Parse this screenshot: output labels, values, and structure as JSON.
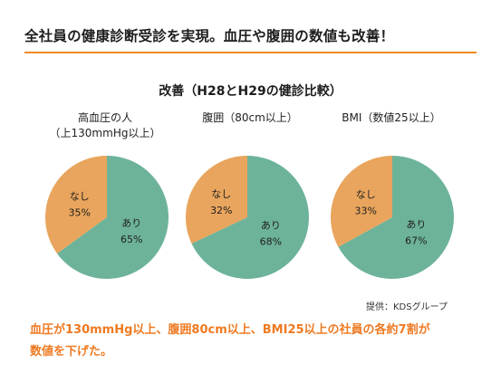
{
  "headline": "全社員の健康診断受診を実現。血圧や腹囲の数値も改善！",
  "accent_color": "#f08a28",
  "colors": {
    "ari": "#6db39a",
    "nashi": "#e9a55d"
  },
  "chart_data": {
    "type": "pie",
    "title": "改善（H28とH29の健診比較）",
    "charts": [
      {
        "label_lines": [
          "高血圧の人",
          "（上130mmHg以上）"
        ],
        "slices": [
          {
            "name": "あり",
            "value_label": "65%",
            "value": 65
          },
          {
            "name": "なし",
            "value_label": "35%",
            "value": 35
          }
        ]
      },
      {
        "label_lines": [
          "腹囲（80cm以上）"
        ],
        "slices": [
          {
            "name": "あり",
            "value_label": "68%",
            "value": 68
          },
          {
            "name": "なし",
            "value_label": "32%",
            "value": 32
          }
        ]
      },
      {
        "label_lines": [
          "BMI（数値25以上）"
        ],
        "slices": [
          {
            "name": "あり",
            "value_label": "67%",
            "value": 67
          },
          {
            "name": "なし",
            "value_label": "33%",
            "value": 33
          }
        ]
      }
    ]
  },
  "source": "提供：KDSグループ",
  "summary_lines": [
    "血圧が130mmHg以上、腹囲80cm以上、BMI25以上の社員の各約7割が",
    "数値を下げた。"
  ]
}
